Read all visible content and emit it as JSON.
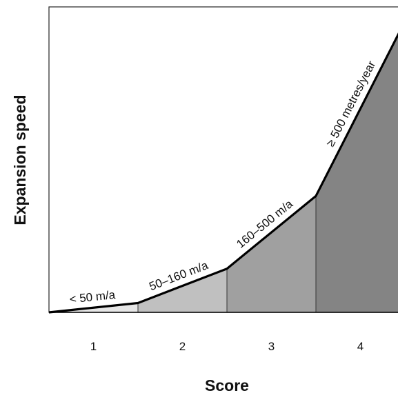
{
  "chart_data": {
    "type": "area",
    "xlabel": "Score",
    "ylabel": "Expansion speed",
    "categories": [
      "1",
      "2",
      "3",
      "4"
    ],
    "segments": [
      {
        "score": "1",
        "label": "< 50 m/a",
        "color": "#e6e6e6"
      },
      {
        "score": "2",
        "label": "50–160 m/a",
        "color": "#c0c0c0"
      },
      {
        "score": "3",
        "label": "160–500 m/a",
        "color": "#a0a0a0"
      },
      {
        "score": "4",
        "label": "≥ 500 metres/year",
        "color": "#848484"
      }
    ],
    "curve_y": [
      0,
      0.032,
      0.15,
      0.4,
      1.0
    ],
    "ylim": [
      0,
      1
    ],
    "grid": false
  }
}
